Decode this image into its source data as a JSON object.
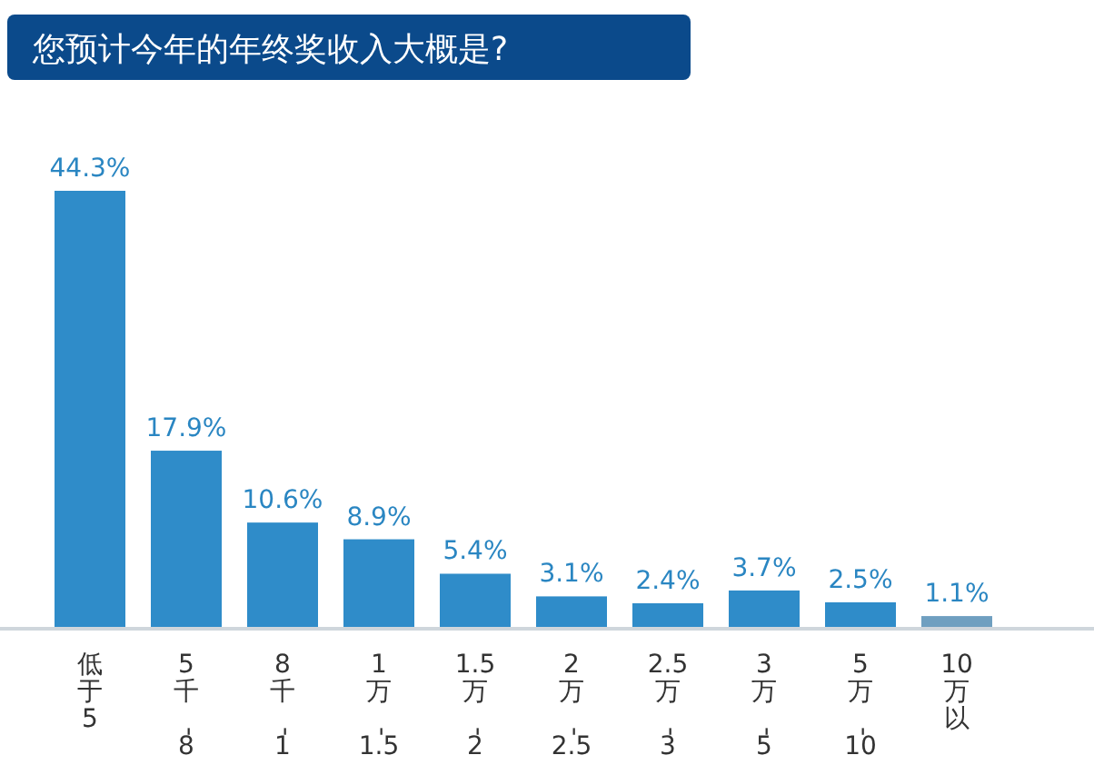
{
  "chart_data": {
    "type": "bar",
    "title": "您预计今年的年终奖收入大概是?",
    "categories": [
      "低于5",
      "5千-8",
      "8千-1",
      "1万-1.5",
      "1.5万-2",
      "2万-2.5",
      "2.5万-3",
      "3万-5",
      "5万-10",
      "10万以"
    ],
    "values": [
      44.3,
      17.9,
      10.6,
      8.9,
      5.4,
      3.1,
      2.4,
      3.7,
      2.5,
      1.1
    ],
    "value_labels": [
      "44.3%",
      "17.9%",
      "10.6%",
      "8.9%",
      "5.4%",
      "3.1%",
      "2.4%",
      "3.7%",
      "2.5%",
      "1.1%"
    ],
    "colors": [
      "#2f8cc9",
      "#2f8cc9",
      "#2f8cc9",
      "#2f8cc9",
      "#2f8cc9",
      "#2f8cc9",
      "#2f8cc9",
      "#2f8cc9",
      "#2f8cc9",
      "#6f9fc0"
    ]
  }
}
